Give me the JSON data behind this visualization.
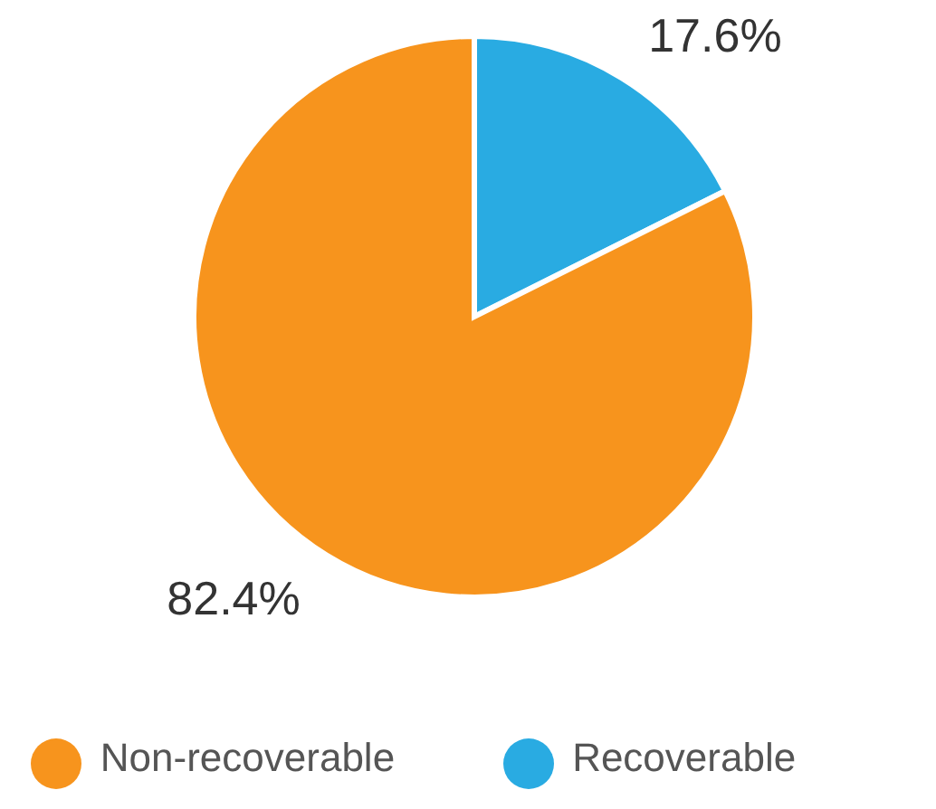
{
  "chart_data": {
    "type": "pie",
    "categories": [
      "Recoverable",
      "Non-recoverable"
    ],
    "values": [
      17.6,
      82.4
    ],
    "colors": [
      "#29abe2",
      "#f7941d"
    ],
    "value_labels": [
      "17.6%",
      "82.4%"
    ],
    "legend": "bottom"
  }
}
